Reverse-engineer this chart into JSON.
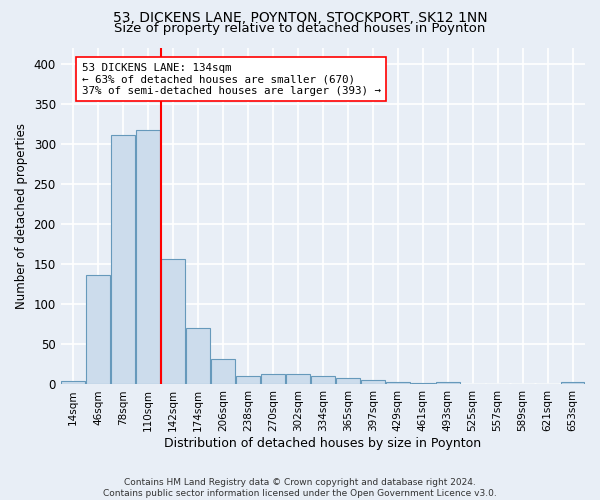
{
  "title_line1": "53, DICKENS LANE, POYNTON, STOCKPORT, SK12 1NN",
  "title_line2": "Size of property relative to detached houses in Poynton",
  "xlabel": "Distribution of detached houses by size in Poynton",
  "ylabel": "Number of detached properties",
  "footnote": "Contains HM Land Registry data © Crown copyright and database right 2024.\nContains public sector information licensed under the Open Government Licence v3.0.",
  "bin_labels": [
    "14sqm",
    "46sqm",
    "78sqm",
    "110sqm",
    "142sqm",
    "174sqm",
    "206sqm",
    "238sqm",
    "270sqm",
    "302sqm",
    "334sqm",
    "365sqm",
    "397sqm",
    "429sqm",
    "461sqm",
    "493sqm",
    "525sqm",
    "557sqm",
    "589sqm",
    "621sqm",
    "653sqm"
  ],
  "bar_values": [
    4,
    137,
    311,
    317,
    157,
    70,
    32,
    10,
    13,
    13,
    10,
    8,
    5,
    3,
    2,
    3,
    0,
    0,
    0,
    0,
    3
  ],
  "bar_color": "#ccdcec",
  "bar_edge_color": "#6699bb",
  "vline_x_index": 3.5,
  "vline_color": "red",
  "annotation_text": "53 DICKENS LANE: 134sqm\n← 63% of detached houses are smaller (670)\n37% of semi-detached houses are larger (393) →",
  "annotation_box_color": "white",
  "annotation_box_edge": "red",
  "ylim": [
    0,
    420
  ],
  "yticks": [
    0,
    50,
    100,
    150,
    200,
    250,
    300,
    350,
    400
  ],
  "background_color": "#e8eef6",
  "axes_background": "#e8eef6",
  "grid_color": "white",
  "title_fontsize": 10,
  "subtitle_fontsize": 9.5,
  "bin_width": 32
}
